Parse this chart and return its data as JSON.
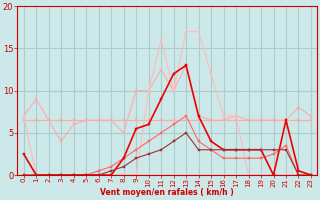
{
  "background_color": "#cce8e8",
  "grid_color": "#aacccc",
  "xlabel": "Vent moyen/en rafales ( km/h )",
  "xlim": [
    -0.5,
    23.5
  ],
  "ylim": [
    0,
    20
  ],
  "yticks": [
    0,
    5,
    10,
    15,
    20
  ],
  "xticks": [
    0,
    1,
    2,
    3,
    4,
    5,
    6,
    7,
    8,
    9,
    10,
    11,
    12,
    13,
    14,
    15,
    16,
    17,
    18,
    19,
    20,
    21,
    22,
    23
  ],
  "lines": [
    {
      "x": [
        0,
        1,
        2,
        3,
        4,
        5,
        6,
        7,
        8,
        9,
        10,
        11,
        12,
        13,
        14,
        15,
        16,
        17,
        18,
        19,
        20,
        21,
        22,
        23
      ],
      "y": [
        6.5,
        6.5,
        6.5,
        6.5,
        6.5,
        6.5,
        6.5,
        6.5,
        6.5,
        6.5,
        6.5,
        6.5,
        6.5,
        6.5,
        6.5,
        6.5,
        6.5,
        6.5,
        6.5,
        6.5,
        6.5,
        6.5,
        6.5,
        6.5
      ],
      "color": "#ffaaaa",
      "lw": 0.8,
      "marker": "s",
      "ms": 1.5
    },
    {
      "x": [
        0,
        1,
        2,
        3,
        4,
        5,
        6,
        7,
        8,
        9,
        10,
        11,
        12,
        13,
        14,
        15,
        16,
        17,
        18,
        19,
        20,
        21,
        22,
        23
      ],
      "y": [
        7,
        9,
        6.5,
        4,
        6.0,
        6.5,
        6.5,
        6.5,
        5,
        10,
        10,
        12.5,
        10,
        13,
        7,
        6.5,
        6.5,
        7,
        6.5,
        6.5,
        6.5,
        6.5,
        8,
        7
      ],
      "color": "#ffaaaa",
      "lw": 0.8,
      "marker": "s",
      "ms": 1.5
    },
    {
      "x": [
        0,
        1,
        2,
        3,
        4,
        5,
        6,
        7,
        8,
        9,
        10,
        11,
        12,
        13,
        14,
        15,
        16,
        17,
        18,
        19,
        20,
        21,
        22,
        23
      ],
      "y": [
        7,
        0,
        0,
        0,
        0,
        0,
        0,
        0,
        0,
        0,
        10,
        16,
        10,
        17,
        17,
        12,
        7,
        7,
        0,
        0,
        0,
        0,
        0,
        0
      ],
      "color": "#ffbbbb",
      "lw": 0.8,
      "marker": "s",
      "ms": 1.5
    },
    {
      "x": [
        0,
        1,
        2,
        3,
        4,
        5,
        6,
        7,
        8,
        9,
        10,
        11,
        12,
        13,
        14,
        15,
        16,
        17,
        18,
        19,
        20,
        21,
        22,
        23
      ],
      "y": [
        0,
        0,
        0,
        0,
        0,
        0,
        0.5,
        1,
        2,
        3,
        4,
        5,
        6,
        7,
        4,
        3,
        2,
        2,
        2,
        2,
        2.5,
        3.5,
        0,
        0
      ],
      "color": "#ff6666",
      "lw": 0.8,
      "marker": "s",
      "ms": 1.5
    },
    {
      "x": [
        0,
        1,
        2,
        3,
        4,
        5,
        6,
        7,
        8,
        9,
        10,
        11,
        12,
        13,
        14,
        15,
        16,
        17,
        18,
        19,
        20,
        21,
        22,
        23
      ],
      "y": [
        2.5,
        0,
        0,
        0,
        0,
        0,
        0,
        0,
        2,
        5.5,
        6,
        9,
        12,
        13,
        7,
        4,
        3,
        3,
        3,
        3,
        0,
        6.5,
        0.5,
        0
      ],
      "color": "#ee0000",
      "lw": 1.2,
      "marker": "s",
      "ms": 1.5
    },
    {
      "x": [
        0,
        1,
        2,
        3,
        4,
        5,
        6,
        7,
        8,
        9,
        10,
        11,
        12,
        13,
        14,
        15,
        16,
        17,
        18,
        19,
        20,
        21,
        22,
        23
      ],
      "y": [
        0,
        0,
        0,
        0,
        0,
        0,
        0,
        0.5,
        1,
        2,
        2.5,
        3,
        4,
        5,
        3,
        3,
        3,
        3,
        3,
        3,
        3,
        3,
        0,
        0
      ],
      "color": "#993333",
      "lw": 0.8,
      "marker": "s",
      "ms": 1.5
    }
  ]
}
